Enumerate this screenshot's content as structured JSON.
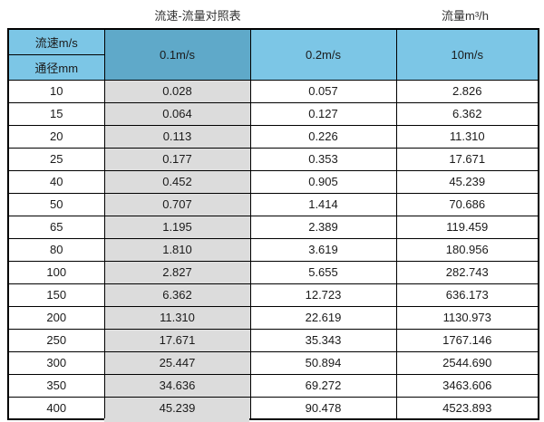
{
  "titles": {
    "left": "流速-流量对照表",
    "right": "流量m³/h"
  },
  "colors": {
    "header_light_blue": "#7CC6E6",
    "header_dark_blue": "#5FA9C9",
    "highlight_grey": "#DCDCDC",
    "border": "#000000",
    "text": "#1a1a1a"
  },
  "chart_data": {
    "type": "table",
    "title": "流速-流量对照表",
    "unit_label": "流量m³/h",
    "corner_top": "流速m/s",
    "corner_bottom": "通径mm",
    "velocity_columns": [
      "0.1m/s",
      "0.2m/s",
      "10m/s"
    ],
    "rows": [
      {
        "diameter": "10",
        "values": [
          "0.028",
          "0.057",
          "2.826"
        ]
      },
      {
        "diameter": "15",
        "values": [
          "0.064",
          "0.127",
          "6.362"
        ]
      },
      {
        "diameter": "20",
        "values": [
          "0.113",
          "0.226",
          "11.310"
        ]
      },
      {
        "diameter": "25",
        "values": [
          "0.177",
          "0.353",
          "17.671"
        ]
      },
      {
        "diameter": "40",
        "values": [
          "0.452",
          "0.905",
          "45.239"
        ]
      },
      {
        "diameter": "50",
        "values": [
          "0.707",
          "1.414",
          "70.686"
        ]
      },
      {
        "diameter": "65",
        "values": [
          "1.195",
          "2.389",
          "119.459"
        ]
      },
      {
        "diameter": "80",
        "values": [
          "1.810",
          "3.619",
          "180.956"
        ]
      },
      {
        "diameter": "100",
        "values": [
          "2.827",
          "5.655",
          "282.743"
        ]
      },
      {
        "diameter": "150",
        "values": [
          "6.362",
          "12.723",
          "636.173"
        ]
      },
      {
        "diameter": "200",
        "values": [
          "11.310",
          "22.619",
          "1130.973"
        ]
      },
      {
        "diameter": "250",
        "values": [
          "17.671",
          "35.343",
          "1767.146"
        ]
      },
      {
        "diameter": "300",
        "values": [
          "25.447",
          "50.894",
          "2544.690"
        ]
      },
      {
        "diameter": "350",
        "values": [
          "34.636",
          "69.272",
          "3463.606"
        ]
      },
      {
        "diameter": "400",
        "values": [
          "45.239",
          "90.478",
          "4523.893"
        ]
      }
    ]
  }
}
